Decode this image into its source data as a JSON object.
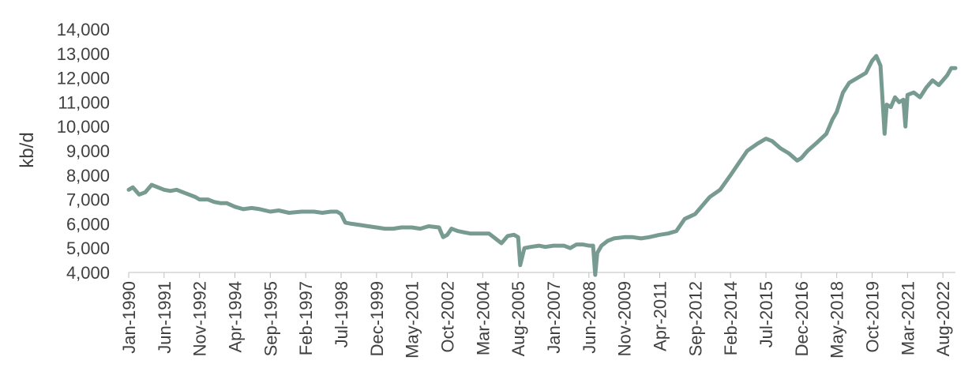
{
  "chart_data": {
    "type": "line",
    "title": "",
    "xlabel": "",
    "ylabel": "kb/d",
    "ylim": [
      4000,
      14000
    ],
    "y_ticks": [
      "4,000",
      "5,000",
      "6,000",
      "7,000",
      "8,000",
      "9,000",
      "10,000",
      "11,000",
      "12,000",
      "13,000",
      "14,000"
    ],
    "x_range": [
      "1990-01",
      "2023-02"
    ],
    "x_tick_labels": [
      "Jan-1990",
      "Jun-1991",
      "Nov-1992",
      "Apr-1994",
      "Sep-1995",
      "Feb-1997",
      "Jul-1998",
      "Dec-1999",
      "May-2001",
      "Oct-2002",
      "Mar-2004",
      "Aug-2005",
      "Jan-2007",
      "Jun-2008",
      "Nov-2009",
      "Apr-2011",
      "Sep-2012",
      "Feb-2014",
      "Jul-2015",
      "Dec-2016",
      "May-2018",
      "Oct-2019",
      "Mar-2021",
      "Aug-2022"
    ],
    "grid": false,
    "line_color": "#779B91",
    "series": [
      {
        "x": [
          "1990-01",
          "1990-03",
          "1990-06",
          "1990-09",
          "1990-12",
          "1991-03",
          "1991-06",
          "1991-09",
          "1991-12",
          "1992-03",
          "1992-06",
          "1992-09",
          "1992-11",
          "1993-03",
          "1993-06",
          "1993-09",
          "1993-12",
          "1994-04",
          "1994-08",
          "1994-12",
          "1995-04",
          "1995-09",
          "1996-01",
          "1996-06",
          "1996-12",
          "1997-02",
          "1997-06",
          "1997-10",
          "1998-02",
          "1998-05",
          "1998-07",
          "1998-09",
          "1998-12",
          "1999-04",
          "1999-08",
          "1999-12",
          "2000-04",
          "2000-08",
          "2000-12",
          "2001-05",
          "2001-09",
          "2002-01",
          "2002-06",
          "2002-08",
          "2002-10",
          "2002-12",
          "2003-03",
          "2003-06",
          "2003-09",
          "2003-12",
          "2004-03",
          "2004-06",
          "2004-09",
          "2004-12",
          "2005-03",
          "2005-06",
          "2005-08",
          "2005-09",
          "2005-11",
          "2006-02",
          "2006-06",
          "2006-09",
          "2007-01",
          "2007-06",
          "2007-09",
          "2007-12",
          "2008-03",
          "2008-06",
          "2008-08",
          "2008-09",
          "2008-10",
          "2008-12",
          "2009-03",
          "2009-06",
          "2009-11",
          "2010-03",
          "2010-07",
          "2010-11",
          "2011-04",
          "2011-08",
          "2011-12",
          "2012-04",
          "2012-09",
          "2012-12",
          "2013-04",
          "2013-09",
          "2014-02",
          "2014-06",
          "2014-10",
          "2015-03",
          "2015-07",
          "2015-10",
          "2016-02",
          "2016-06",
          "2016-10",
          "2016-12",
          "2017-03",
          "2017-07",
          "2017-12",
          "2018-03",
          "2018-05",
          "2018-08",
          "2018-11",
          "2019-03",
          "2019-07",
          "2019-10",
          "2019-12",
          "2020-02",
          "2020-04",
          "2020-05",
          "2020-07",
          "2020-09",
          "2020-11",
          "2021-01",
          "2021-02",
          "2021-03",
          "2021-06",
          "2021-09",
          "2021-12",
          "2022-03",
          "2022-06",
          "2022-08",
          "2022-10",
          "2022-12",
          "2023-02"
        ],
        "values": [
          7400,
          7500,
          7200,
          7300,
          7600,
          7500,
          7400,
          7350,
          7400,
          7300,
          7200,
          7100,
          7000,
          7000,
          6900,
          6850,
          6850,
          6700,
          6600,
          6650,
          6600,
          6500,
          6550,
          6450,
          6500,
          6500,
          6500,
          6450,
          6500,
          6500,
          6400,
          6050,
          6000,
          5950,
          5900,
          5850,
          5800,
          5800,
          5850,
          5850,
          5800,
          5900,
          5850,
          5450,
          5550,
          5800,
          5700,
          5650,
          5600,
          5600,
          5600,
          5600,
          5400,
          5200,
          5500,
          5550,
          5450,
          4300,
          5000,
          5050,
          5100,
          5050,
          5100,
          5100,
          5000,
          5150,
          5150,
          5100,
          5100,
          3900,
          4800,
          5100,
          5300,
          5400,
          5450,
          5450,
          5400,
          5450,
          5550,
          5600,
          5700,
          6200,
          6400,
          6700,
          7100,
          7400,
          8000,
          8500,
          9000,
          9300,
          9500,
          9400,
          9100,
          8900,
          8600,
          8700,
          9000,
          9300,
          9700,
          10300,
          10600,
          11400,
          11800,
          12000,
          12200,
          12700,
          12900,
          12500,
          9700,
          10900,
          10800,
          11200,
          11000,
          11100,
          10000,
          11300,
          11400,
          11200,
          11600,
          11900,
          11700,
          11900,
          12100,
          12400,
          12400
        ]
      }
    ]
  }
}
